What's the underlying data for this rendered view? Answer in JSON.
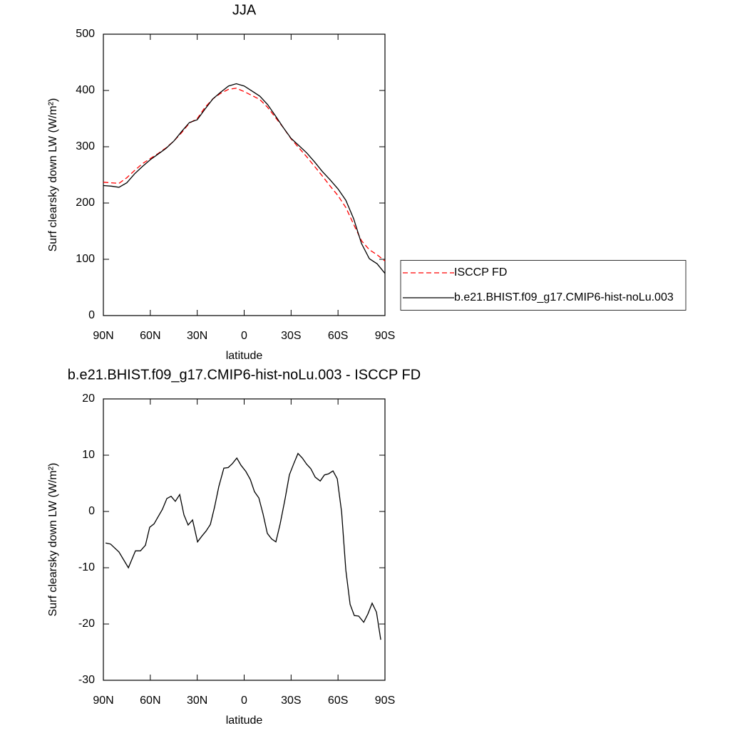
{
  "chart_data": [
    {
      "type": "line",
      "title": "JJA",
      "xlabel": "latitude",
      "ylabel": "Surf clearsky down LW (W/m²)",
      "x": [
        90,
        85,
        80,
        75,
        70,
        65,
        60,
        55,
        50,
        45,
        40,
        35,
        30,
        25,
        20,
        15,
        10,
        5,
        0,
        -5,
        -10,
        -15,
        -20,
        -25,
        -30,
        -35,
        -40,
        -45,
        -50,
        -55,
        -60,
        -65,
        -70,
        -75,
        -80,
        -85,
        -90
      ],
      "series": [
        {
          "name": "ISCCP FD",
          "color": "#ff0000",
          "dashed": true,
          "values": [
            237,
            236,
            235,
            245,
            258,
            270,
            279,
            288,
            298,
            310,
            325,
            342,
            350,
            370,
            385,
            395,
            402,
            404,
            398,
            391,
            384,
            370,
            352,
            334,
            314,
            298,
            282,
            265,
            248,
            230,
            213,
            192,
            162,
            133,
            117,
            108,
            97
          ]
        },
        {
          "name": "b.e21.BHIST.f09_g17.CMIP6-hist-noLu.003",
          "color": "#000000",
          "dashed": false,
          "values": [
            231,
            230,
            228,
            236,
            252,
            265,
            277,
            287,
            297,
            310,
            327,
            343,
            348,
            367,
            385,
            397,
            408,
            412,
            408,
            399,
            390,
            375,
            355,
            334,
            315,
            302,
            289,
            273,
            256,
            241,
            225,
            205,
            172,
            128,
            101,
            92,
            75
          ]
        }
      ],
      "xlim": [
        90,
        -90
      ],
      "xticks": [
        {
          "value": 90,
          "label": "90N"
        },
        {
          "value": 60,
          "label": "60N"
        },
        {
          "value": 30,
          "label": "30N"
        },
        0,
        {
          "value": -30,
          "label": "30S"
        },
        {
          "value": -60,
          "label": "60S"
        },
        {
          "value": -90,
          "label": "90S"
        }
      ],
      "ylim": [
        0,
        500
      ],
      "yticks": [
        0,
        100,
        200,
        300,
        400,
        500
      ],
      "legend": "right"
    },
    {
      "type": "line",
      "title": "b.e21.BHIST.f09_g17.CMIP6-hist-noLu.003 - ISCCP FD",
      "xlabel": "latitude",
      "ylabel": "Surf clearsky down LW (W/m²)",
      "x": [
        88.6,
        85.4,
        80,
        74,
        69.5,
        66.3,
        63.1,
        60.4,
        57.6,
        54.9,
        52.2,
        49.4,
        46.7,
        44,
        41.2,
        38.5,
        35.8,
        33,
        29.8,
        27.1,
        24.4,
        21.6,
        18.9,
        16.2,
        13,
        10.2,
        7.5,
        4.7,
        2,
        -1.1,
        -3.9,
        -6.6,
        -9.4,
        -12.1,
        -14.8,
        -17.6,
        -20.3,
        -23,
        -26.2,
        -28.9,
        -31.7,
        -34.4,
        -37.2,
        -39.9,
        -42.6,
        -45.4,
        -48.6,
        -51.3,
        -54,
        -56.8,
        -59.5,
        -62.3,
        -65,
        -67.7,
        -70.4,
        -73.2,
        -76.4,
        -79.1,
        -81.8,
        -84.6,
        -87.3
      ],
      "color": "#000000",
      "values": [
        -5.6,
        -5.8,
        -7.2,
        -10,
        -7,
        -7,
        -6,
        -2.8,
        -2.2,
        -0.9,
        0.4,
        2.3,
        2.7,
        1.8,
        3,
        -0.6,
        -2.4,
        -1.5,
        -5.4,
        -4.4,
        -3.5,
        -2.3,
        0.8,
        4.4,
        7.7,
        7.8,
        8.5,
        9.5,
        8.2,
        7.1,
        5.7,
        3.5,
        2.4,
        -0.5,
        -3.9,
        -4.9,
        -5.4,
        -2.2,
        2.3,
        6.5,
        8.5,
        10.3,
        9.5,
        8.4,
        7.6,
        6.1,
        5.4,
        6.5,
        6.7,
        7.2,
        5.8,
        -0.1,
        -10.4,
        -16.5,
        -18.5,
        -18.6,
        -19.7,
        -18.2,
        -16.3,
        -17.9,
        -22.8
      ],
      "xlim": [
        90,
        -90
      ],
      "xticks": [
        {
          "value": 90,
          "label": "90N"
        },
        {
          "value": 60,
          "label": "60N"
        },
        {
          "value": 30,
          "label": "30N"
        },
        0,
        {
          "value": -30,
          "label": "30S"
        },
        {
          "value": -60,
          "label": "60S"
        },
        {
          "value": -90,
          "label": "90S"
        }
      ],
      "ylim": [
        -30,
        20
      ],
      "yticks": [
        -30,
        -20,
        -10,
        0,
        10,
        20
      ]
    }
  ]
}
